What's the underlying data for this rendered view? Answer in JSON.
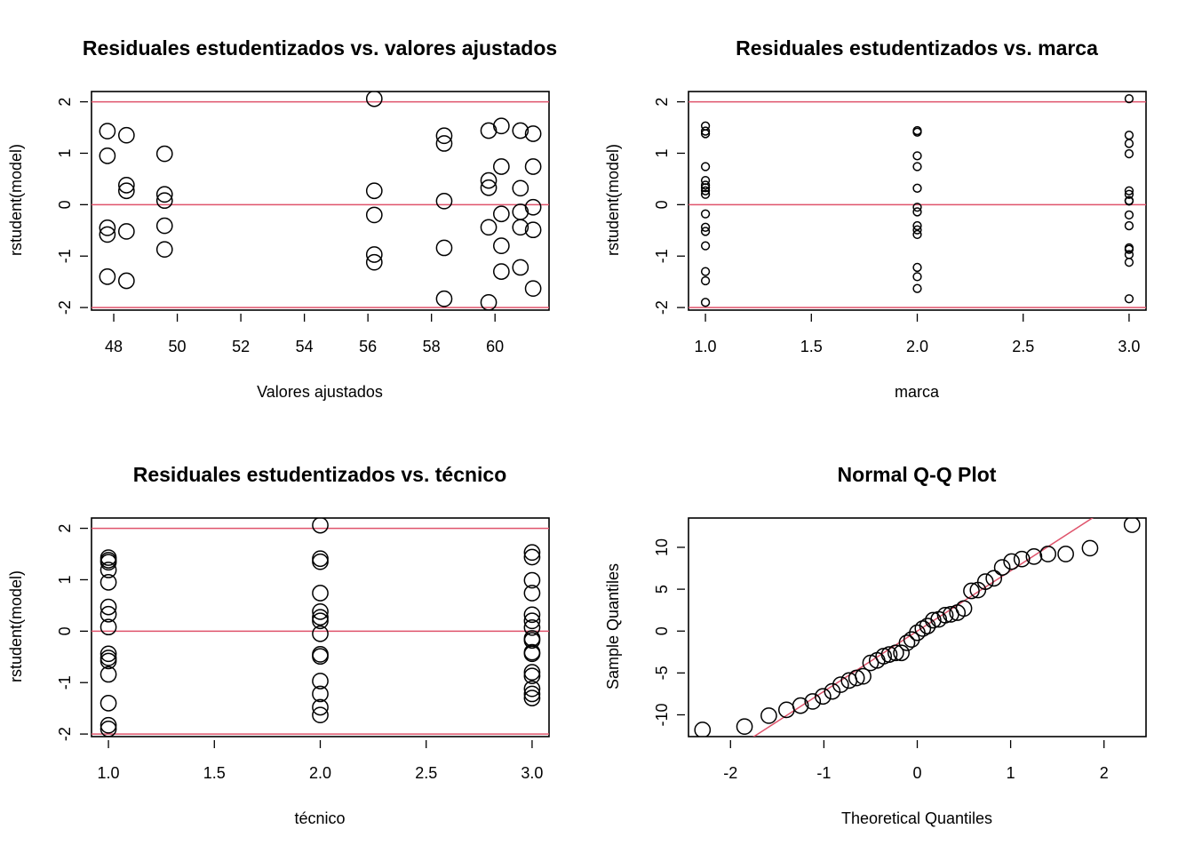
{
  "colors": {
    "point": "#000000",
    "reference_line": "#DF536B",
    "background": "#FFFFFF"
  },
  "chart_data": [
    {
      "type": "scatter",
      "title": "Residuales estudentizados vs. valores ajustados",
      "xlabel": "Valores ajustados",
      "ylabel": "rstudent(model)",
      "xlim": [
        47.3,
        61.7
      ],
      "ylim": [
        -2.05,
        2.2
      ],
      "x_ticks": [
        48,
        50,
        52,
        54,
        56,
        58,
        60
      ],
      "x_tick_labels": [
        "48",
        "50",
        "52",
        "54",
        "56",
        "58",
        "60"
      ],
      "y_ticks": [
        -2,
        -1,
        0,
        1,
        2
      ],
      "y_tick_labels": [
        "-2",
        "-1",
        "0",
        "1",
        "2"
      ],
      "hlines": [
        -2,
        0,
        2
      ],
      "marker": "open-circle-large",
      "points": [
        [
          47.8,
          1.43
        ],
        [
          47.8,
          0.95
        ],
        [
          47.8,
          -0.45
        ],
        [
          47.8,
          -0.58
        ],
        [
          47.8,
          -1.4
        ],
        [
          48.4,
          1.35
        ],
        [
          48.4,
          0.38
        ],
        [
          48.4,
          0.27
        ],
        [
          48.4,
          -0.52
        ],
        [
          48.4,
          -1.48
        ],
        [
          49.6,
          0.99
        ],
        [
          49.6,
          0.2
        ],
        [
          49.6,
          0.08
        ],
        [
          49.6,
          -0.41
        ],
        [
          49.6,
          -0.87
        ],
        [
          56.2,
          2.06
        ],
        [
          56.2,
          0.27
        ],
        [
          56.2,
          -0.2
        ],
        [
          56.2,
          -0.97
        ],
        [
          56.2,
          -1.12
        ],
        [
          58.4,
          1.34
        ],
        [
          58.4,
          1.19
        ],
        [
          58.4,
          0.07
        ],
        [
          58.4,
          -0.84
        ],
        [
          58.4,
          -1.83
        ],
        [
          59.8,
          1.44
        ],
        [
          59.8,
          0.47
        ],
        [
          59.8,
          0.33
        ],
        [
          59.8,
          -0.44
        ],
        [
          59.8,
          -1.9
        ],
        [
          60.2,
          1.53
        ],
        [
          60.2,
          0.74
        ],
        [
          60.2,
          -0.18
        ],
        [
          60.2,
          -0.8
        ],
        [
          60.2,
          -1.3
        ],
        [
          60.8,
          1.44
        ],
        [
          60.8,
          0.32
        ],
        [
          60.8,
          -0.14
        ],
        [
          60.8,
          -0.44
        ],
        [
          60.8,
          -1.22
        ],
        [
          61.2,
          1.38
        ],
        [
          61.2,
          0.74
        ],
        [
          61.2,
          -0.05
        ],
        [
          61.2,
          -0.49
        ],
        [
          61.2,
          -1.63
        ]
      ]
    },
    {
      "type": "scatter",
      "title": "Residuales estudentizados vs. marca",
      "xlabel": "marca",
      "ylabel": "rstudent(model)",
      "xlim": [
        0.92,
        3.08
      ],
      "ylim": [
        -2.05,
        2.2
      ],
      "x_ticks": [
        1.0,
        1.5,
        2.0,
        2.5,
        3.0
      ],
      "x_tick_labels": [
        "1.0",
        "1.5",
        "2.0",
        "2.5",
        "3.0"
      ],
      "y_ticks": [
        -2,
        -1,
        0,
        1,
        2
      ],
      "y_tick_labels": [
        "-2",
        "-1",
        "0",
        "1",
        "2"
      ],
      "hlines": [
        -2,
        0,
        2
      ],
      "marker": "open-circle-small",
      "points": [
        [
          1,
          1.53
        ],
        [
          1,
          1.43
        ],
        [
          1,
          1.38
        ],
        [
          1,
          0.74
        ],
        [
          1,
          0.47
        ],
        [
          1,
          0.38
        ],
        [
          1,
          0.33
        ],
        [
          1,
          0.27
        ],
        [
          1,
          0.2
        ],
        [
          1,
          -0.18
        ],
        [
          1,
          -0.44
        ],
        [
          1,
          -0.52
        ],
        [
          1,
          -0.8
        ],
        [
          1,
          -1.3
        ],
        [
          1,
          -1.48
        ],
        [
          1,
          -1.9
        ],
        [
          2,
          1.44
        ],
        [
          2,
          1.41
        ],
        [
          2,
          0.95
        ],
        [
          2,
          0.74
        ],
        [
          2,
          0.32
        ],
        [
          2,
          -0.05
        ],
        [
          2,
          -0.14
        ],
        [
          2,
          -0.41
        ],
        [
          2,
          -0.49
        ],
        [
          2,
          -0.58
        ],
        [
          2,
          -1.22
        ],
        [
          2,
          -1.4
        ],
        [
          2,
          -1.63
        ],
        [
          3,
          2.06
        ],
        [
          3,
          1.35
        ],
        [
          3,
          1.19
        ],
        [
          3,
          0.99
        ],
        [
          3,
          0.27
        ],
        [
          3,
          0.2
        ],
        [
          3,
          0.08
        ],
        [
          3,
          0.07
        ],
        [
          3,
          -0.2
        ],
        [
          3,
          -0.41
        ],
        [
          3,
          -0.84
        ],
        [
          3,
          -0.87
        ],
        [
          3,
          -0.97
        ],
        [
          3,
          -1.12
        ],
        [
          3,
          -1.83
        ]
      ]
    },
    {
      "type": "scatter",
      "title": "Residuales estudentizados vs. técnico",
      "xlabel": "técnico",
      "ylabel": "rstudent(model)",
      "xlim": [
        0.92,
        3.08
      ],
      "ylim": [
        -2.05,
        2.2
      ],
      "x_ticks": [
        1.0,
        1.5,
        2.0,
        2.5,
        3.0
      ],
      "x_tick_labels": [
        "1.0",
        "1.5",
        "2.0",
        "2.5",
        "3.0"
      ],
      "y_ticks": [
        -2,
        -1,
        0,
        1,
        2
      ],
      "y_tick_labels": [
        "-2",
        "-1",
        "0",
        "1",
        "2"
      ],
      "hlines": [
        -2,
        0,
        2
      ],
      "marker": "open-circle-large",
      "points": [
        [
          1,
          1.43
        ],
        [
          1,
          1.38
        ],
        [
          1,
          1.34
        ],
        [
          1,
          1.19
        ],
        [
          1,
          0.95
        ],
        [
          1,
          0.47
        ],
        [
          1,
          0.33
        ],
        [
          1,
          0.08
        ],
        [
          1,
          -0.44
        ],
        [
          1,
          -0.52
        ],
        [
          1,
          -0.58
        ],
        [
          1,
          -0.84
        ],
        [
          1,
          -1.4
        ],
        [
          1,
          -1.83
        ],
        [
          1,
          -1.9
        ],
        [
          2,
          2.06
        ],
        [
          2,
          1.41
        ],
        [
          2,
          1.35
        ],
        [
          2,
          0.74
        ],
        [
          2,
          0.38
        ],
        [
          2,
          0.27
        ],
        [
          2,
          0.2
        ],
        [
          2,
          -0.05
        ],
        [
          2,
          -0.45
        ],
        [
          2,
          -0.49
        ],
        [
          2,
          -0.97
        ],
        [
          2,
          -1.22
        ],
        [
          2,
          -1.48
        ],
        [
          2,
          -1.63
        ],
        [
          3,
          1.53
        ],
        [
          3,
          1.44
        ],
        [
          3,
          0.99
        ],
        [
          3,
          0.74
        ],
        [
          3,
          0.32
        ],
        [
          3,
          0.2
        ],
        [
          3,
          0.07
        ],
        [
          3,
          -0.14
        ],
        [
          3,
          -0.18
        ],
        [
          3,
          -0.41
        ],
        [
          3,
          -0.44
        ],
        [
          3,
          -0.8
        ],
        [
          3,
          -0.87
        ],
        [
          3,
          -1.12
        ],
        [
          3,
          -1.22
        ],
        [
          3,
          -1.3
        ]
      ]
    },
    {
      "type": "scatter",
      "title": "Normal Q-Q Plot",
      "xlabel": "Theoretical Quantiles",
      "ylabel": "Sample Quantiles",
      "xlim": [
        -2.45,
        2.45
      ],
      "ylim": [
        -12.6,
        13.5
      ],
      "x_ticks": [
        -2,
        -1,
        0,
        1,
        2
      ],
      "x_tick_labels": [
        "-2",
        "-1",
        "0",
        "1",
        "2"
      ],
      "y_ticks": [
        -10,
        -5,
        0,
        5,
        10
      ],
      "y_tick_labels": [
        "-10",
        "-5",
        "0",
        "5",
        "10"
      ],
      "reference_line": {
        "slope": 7.2,
        "intercept": 0.0
      },
      "marker": "open-circle-large",
      "points": [
        [
          -2.3,
          -11.8
        ],
        [
          -1.85,
          -11.4
        ],
        [
          -1.59,
          -10.1
        ],
        [
          -1.4,
          -9.4
        ],
        [
          -1.25,
          -8.9
        ],
        [
          -1.12,
          -8.4
        ],
        [
          -1.01,
          -7.8
        ],
        [
          -0.91,
          -7.2
        ],
        [
          -0.82,
          -6.4
        ],
        [
          -0.73,
          -5.9
        ],
        [
          -0.65,
          -5.6
        ],
        [
          -0.58,
          -5.4
        ],
        [
          -0.5,
          -3.8
        ],
        [
          -0.43,
          -3.5
        ],
        [
          -0.36,
          -3.0
        ],
        [
          -0.3,
          -2.8
        ],
        [
          -0.23,
          -2.6
        ],
        [
          -0.17,
          -2.6
        ],
        [
          -0.11,
          -1.4
        ],
        [
          -0.06,
          -1.0
        ],
        [
          0.0,
          -0.2
        ],
        [
          0.06,
          0.3
        ],
        [
          0.11,
          0.6
        ],
        [
          0.17,
          1.3
        ],
        [
          0.23,
          1.4
        ],
        [
          0.3,
          1.9
        ],
        [
          0.36,
          2.0
        ],
        [
          0.43,
          2.2
        ],
        [
          0.5,
          2.7
        ],
        [
          0.58,
          4.8
        ],
        [
          0.65,
          4.9
        ],
        [
          0.73,
          5.9
        ],
        [
          0.82,
          6.3
        ],
        [
          0.91,
          7.6
        ],
        [
          1.01,
          8.3
        ],
        [
          1.12,
          8.6
        ],
        [
          1.25,
          8.9
        ],
        [
          1.4,
          9.2
        ],
        [
          1.59,
          9.2
        ],
        [
          1.85,
          9.9
        ],
        [
          2.3,
          12.7
        ]
      ]
    }
  ]
}
